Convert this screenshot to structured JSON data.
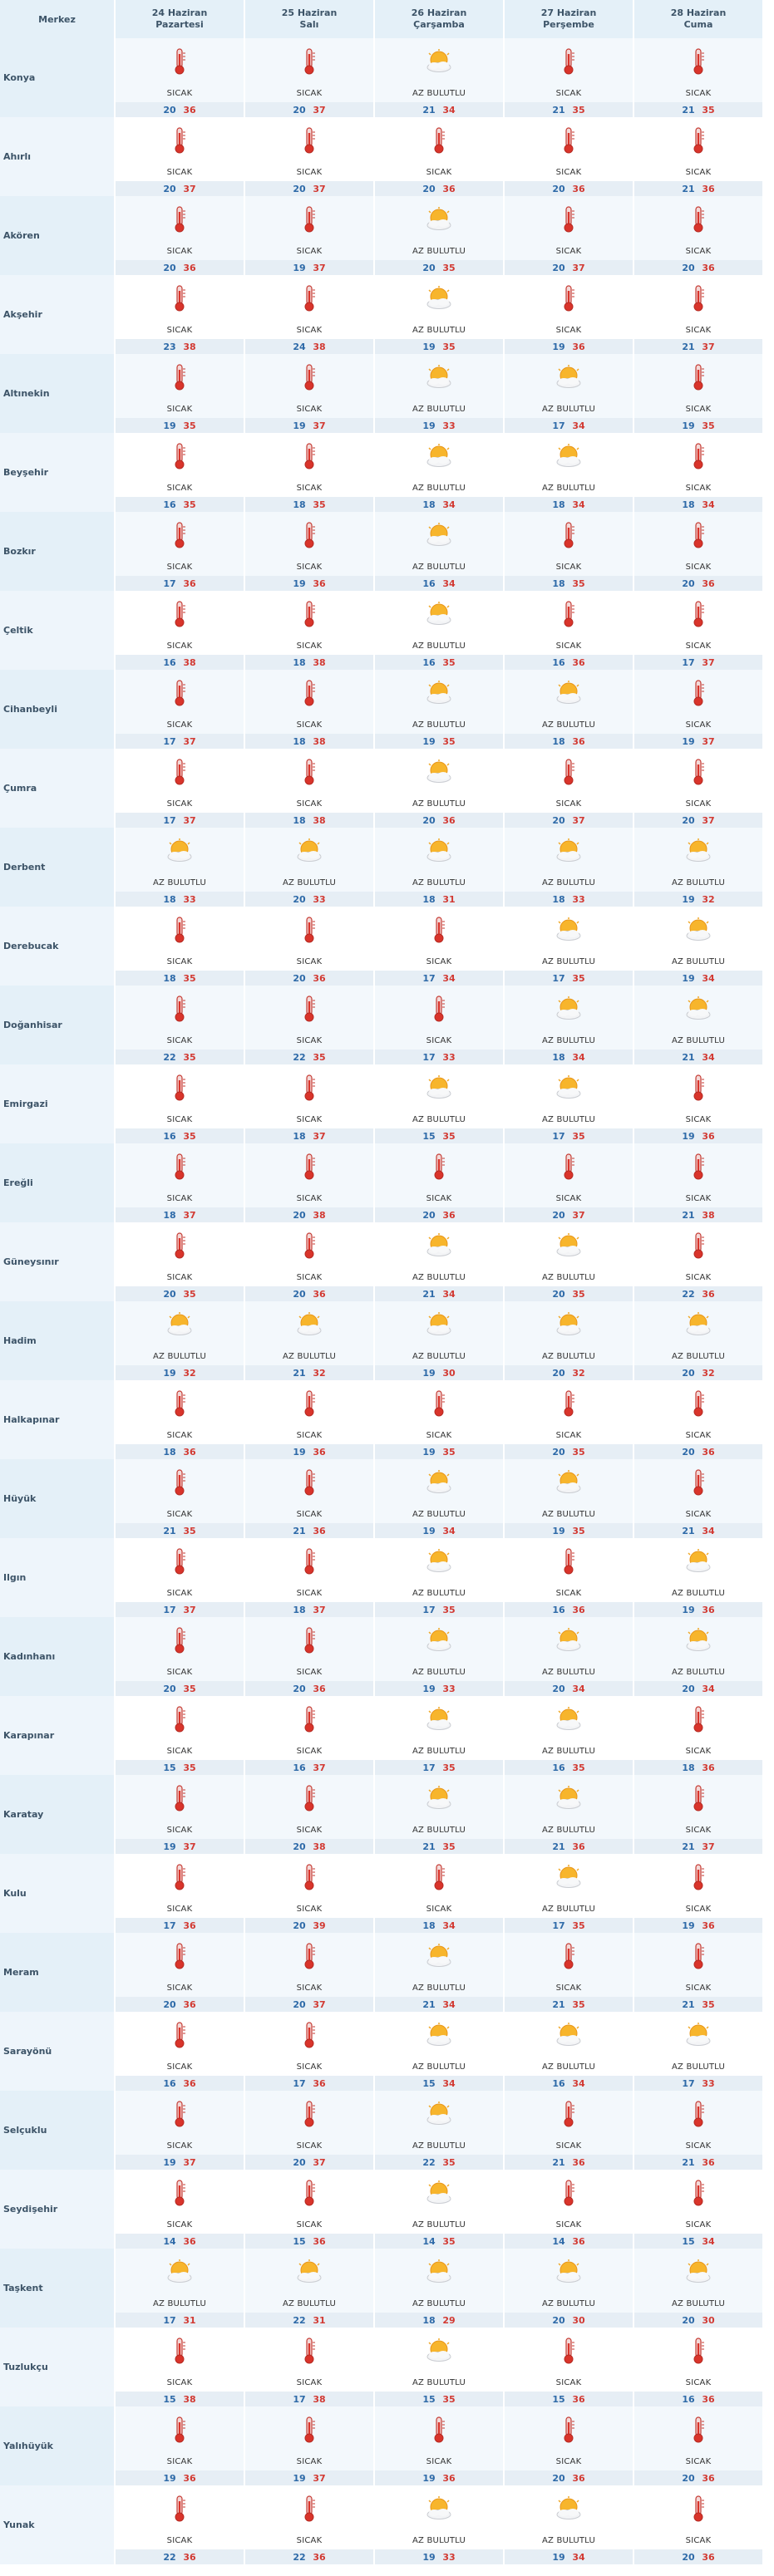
{
  "header": {
    "merkez_label": "Merkez",
    "days": [
      {
        "date": "24 Haziran",
        "weekday": "Pazartesi"
      },
      {
        "date": "25 Haziran",
        "weekday": "Salı"
      },
      {
        "date": "26 Haziran",
        "weekday": "Çarşamba"
      },
      {
        "date": "27 Haziran",
        "weekday": "Perşembe"
      },
      {
        "date": "28 Haziran",
        "weekday": "Cuma"
      }
    ]
  },
  "icons": {
    "SICAK": "thermometer-hot-icon",
    "AZ BULUTLU": "partly-cloudy-sun-icon"
  },
  "colors": {
    "min": "#2e6aa8",
    "max": "#d23a33",
    "header_bg": "#e4f0f8"
  },
  "rows": [
    {
      "city": "Konya",
      "days": [
        {
          "cond": "SICAK",
          "min": "20",
          "max": "36"
        },
        {
          "cond": "SICAK",
          "min": "20",
          "max": "37"
        },
        {
          "cond": "AZ BULUTLU",
          "min": "21",
          "max": "34"
        },
        {
          "cond": "SICAK",
          "min": "21",
          "max": "35"
        },
        {
          "cond": "SICAK",
          "min": "21",
          "max": "35"
        }
      ]
    },
    {
      "city": "Ahırlı",
      "days": [
        {
          "cond": "SICAK",
          "min": "20",
          "max": "37"
        },
        {
          "cond": "SICAK",
          "min": "20",
          "max": "37"
        },
        {
          "cond": "SICAK",
          "min": "20",
          "max": "36"
        },
        {
          "cond": "SICAK",
          "min": "20",
          "max": "36"
        },
        {
          "cond": "SICAK",
          "min": "21",
          "max": "36"
        }
      ]
    },
    {
      "city": "Akören",
      "days": [
        {
          "cond": "SICAK",
          "min": "20",
          "max": "36"
        },
        {
          "cond": "SICAK",
          "min": "19",
          "max": "37"
        },
        {
          "cond": "AZ BULUTLU",
          "min": "20",
          "max": "35"
        },
        {
          "cond": "SICAK",
          "min": "20",
          "max": "37"
        },
        {
          "cond": "SICAK",
          "min": "20",
          "max": "36"
        }
      ]
    },
    {
      "city": "Akşehir",
      "days": [
        {
          "cond": "SICAK",
          "min": "23",
          "max": "38"
        },
        {
          "cond": "SICAK",
          "min": "24",
          "max": "38"
        },
        {
          "cond": "AZ BULUTLU",
          "min": "19",
          "max": "35"
        },
        {
          "cond": "SICAK",
          "min": "19",
          "max": "36"
        },
        {
          "cond": "SICAK",
          "min": "21",
          "max": "37"
        }
      ]
    },
    {
      "city": "Altınekin",
      "days": [
        {
          "cond": "SICAK",
          "min": "19",
          "max": "35"
        },
        {
          "cond": "SICAK",
          "min": "19",
          "max": "37"
        },
        {
          "cond": "AZ BULUTLU",
          "min": "19",
          "max": "33"
        },
        {
          "cond": "AZ BULUTLU",
          "min": "17",
          "max": "34"
        },
        {
          "cond": "SICAK",
          "min": "19",
          "max": "35"
        }
      ]
    },
    {
      "city": "Beyşehir",
      "days": [
        {
          "cond": "SICAK",
          "min": "16",
          "max": "35"
        },
        {
          "cond": "SICAK",
          "min": "18",
          "max": "35"
        },
        {
          "cond": "AZ BULUTLU",
          "min": "18",
          "max": "34"
        },
        {
          "cond": "AZ BULUTLU",
          "min": "18",
          "max": "34"
        },
        {
          "cond": "SICAK",
          "min": "18",
          "max": "34"
        }
      ]
    },
    {
      "city": "Bozkır",
      "days": [
        {
          "cond": "SICAK",
          "min": "17",
          "max": "36"
        },
        {
          "cond": "SICAK",
          "min": "19",
          "max": "36"
        },
        {
          "cond": "AZ BULUTLU",
          "min": "16",
          "max": "34"
        },
        {
          "cond": "SICAK",
          "min": "18",
          "max": "35"
        },
        {
          "cond": "SICAK",
          "min": "20",
          "max": "36"
        }
      ]
    },
    {
      "city": "Çeltik",
      "days": [
        {
          "cond": "SICAK",
          "min": "16",
          "max": "38"
        },
        {
          "cond": "SICAK",
          "min": "18",
          "max": "38"
        },
        {
          "cond": "AZ BULUTLU",
          "min": "16",
          "max": "35"
        },
        {
          "cond": "SICAK",
          "min": "16",
          "max": "36"
        },
        {
          "cond": "SICAK",
          "min": "17",
          "max": "37"
        }
      ]
    },
    {
      "city": "Cihanbeyli",
      "days": [
        {
          "cond": "SICAK",
          "min": "17",
          "max": "37"
        },
        {
          "cond": "SICAK",
          "min": "18",
          "max": "38"
        },
        {
          "cond": "AZ BULUTLU",
          "min": "19",
          "max": "35"
        },
        {
          "cond": "AZ BULUTLU",
          "min": "18",
          "max": "36"
        },
        {
          "cond": "SICAK",
          "min": "19",
          "max": "37"
        }
      ]
    },
    {
      "city": "Çumra",
      "days": [
        {
          "cond": "SICAK",
          "min": "17",
          "max": "37"
        },
        {
          "cond": "SICAK",
          "min": "18",
          "max": "38"
        },
        {
          "cond": "AZ BULUTLU",
          "min": "20",
          "max": "36"
        },
        {
          "cond": "SICAK",
          "min": "20",
          "max": "37"
        },
        {
          "cond": "SICAK",
          "min": "20",
          "max": "37"
        }
      ]
    },
    {
      "city": "Derbent",
      "days": [
        {
          "cond": "AZ BULUTLU",
          "min": "18",
          "max": "33"
        },
        {
          "cond": "AZ BULUTLU",
          "min": "20",
          "max": "33"
        },
        {
          "cond": "AZ BULUTLU",
          "min": "18",
          "max": "31"
        },
        {
          "cond": "AZ BULUTLU",
          "min": "18",
          "max": "33"
        },
        {
          "cond": "AZ BULUTLU",
          "min": "19",
          "max": "32"
        }
      ]
    },
    {
      "city": "Derebucak",
      "days": [
        {
          "cond": "SICAK",
          "min": "18",
          "max": "35"
        },
        {
          "cond": "SICAK",
          "min": "20",
          "max": "36"
        },
        {
          "cond": "SICAK",
          "min": "17",
          "max": "34"
        },
        {
          "cond": "AZ BULUTLU",
          "min": "17",
          "max": "35"
        },
        {
          "cond": "AZ BULUTLU",
          "min": "19",
          "max": "34"
        }
      ]
    },
    {
      "city": "Doğanhisar",
      "days": [
        {
          "cond": "SICAK",
          "min": "22",
          "max": "35"
        },
        {
          "cond": "SICAK",
          "min": "22",
          "max": "35"
        },
        {
          "cond": "SICAK",
          "min": "17",
          "max": "33"
        },
        {
          "cond": "AZ BULUTLU",
          "min": "18",
          "max": "34"
        },
        {
          "cond": "AZ BULUTLU",
          "min": "21",
          "max": "34"
        }
      ]
    },
    {
      "city": "Emirgazi",
      "days": [
        {
          "cond": "SICAK",
          "min": "16",
          "max": "35"
        },
        {
          "cond": "SICAK",
          "min": "18",
          "max": "37"
        },
        {
          "cond": "AZ BULUTLU",
          "min": "15",
          "max": "35"
        },
        {
          "cond": "AZ BULUTLU",
          "min": "17",
          "max": "35"
        },
        {
          "cond": "SICAK",
          "min": "19",
          "max": "36"
        }
      ]
    },
    {
      "city": "Ereğli",
      "days": [
        {
          "cond": "SICAK",
          "min": "18",
          "max": "37"
        },
        {
          "cond": "SICAK",
          "min": "20",
          "max": "38"
        },
        {
          "cond": "SICAK",
          "min": "20",
          "max": "36"
        },
        {
          "cond": "SICAK",
          "min": "20",
          "max": "37"
        },
        {
          "cond": "SICAK",
          "min": "21",
          "max": "38"
        }
      ]
    },
    {
      "city": "Güneysınır",
      "days": [
        {
          "cond": "SICAK",
          "min": "20",
          "max": "35"
        },
        {
          "cond": "SICAK",
          "min": "20",
          "max": "36"
        },
        {
          "cond": "AZ BULUTLU",
          "min": "21",
          "max": "34"
        },
        {
          "cond": "AZ BULUTLU",
          "min": "20",
          "max": "35"
        },
        {
          "cond": "SICAK",
          "min": "22",
          "max": "36"
        }
      ]
    },
    {
      "city": "Hadim",
      "days": [
        {
          "cond": "AZ BULUTLU",
          "min": "19",
          "max": "32"
        },
        {
          "cond": "AZ BULUTLU",
          "min": "21",
          "max": "32"
        },
        {
          "cond": "AZ BULUTLU",
          "min": "19",
          "max": "30"
        },
        {
          "cond": "AZ BULUTLU",
          "min": "20",
          "max": "32"
        },
        {
          "cond": "AZ BULUTLU",
          "min": "20",
          "max": "32"
        }
      ]
    },
    {
      "city": "Halkapınar",
      "days": [
        {
          "cond": "SICAK",
          "min": "18",
          "max": "36"
        },
        {
          "cond": "SICAK",
          "min": "19",
          "max": "36"
        },
        {
          "cond": "SICAK",
          "min": "19",
          "max": "35"
        },
        {
          "cond": "SICAK",
          "min": "20",
          "max": "35"
        },
        {
          "cond": "SICAK",
          "min": "20",
          "max": "36"
        }
      ]
    },
    {
      "city": "Hüyük",
      "days": [
        {
          "cond": "SICAK",
          "min": "21",
          "max": "35"
        },
        {
          "cond": "SICAK",
          "min": "21",
          "max": "36"
        },
        {
          "cond": "AZ BULUTLU",
          "min": "19",
          "max": "34"
        },
        {
          "cond": "AZ BULUTLU",
          "min": "19",
          "max": "35"
        },
        {
          "cond": "SICAK",
          "min": "21",
          "max": "34"
        }
      ]
    },
    {
      "city": "Ilgın",
      "days": [
        {
          "cond": "SICAK",
          "min": "17",
          "max": "37"
        },
        {
          "cond": "SICAK",
          "min": "18",
          "max": "37"
        },
        {
          "cond": "AZ BULUTLU",
          "min": "17",
          "max": "35"
        },
        {
          "cond": "SICAK",
          "min": "16",
          "max": "36"
        },
        {
          "cond": "AZ BULUTLU",
          "min": "19",
          "max": "36"
        }
      ]
    },
    {
      "city": "Kadınhanı",
      "days": [
        {
          "cond": "SICAK",
          "min": "20",
          "max": "35"
        },
        {
          "cond": "SICAK",
          "min": "20",
          "max": "36"
        },
        {
          "cond": "AZ BULUTLU",
          "min": "19",
          "max": "33"
        },
        {
          "cond": "AZ BULUTLU",
          "min": "20",
          "max": "34"
        },
        {
          "cond": "AZ BULUTLU",
          "min": "20",
          "max": "34"
        }
      ]
    },
    {
      "city": "Karapınar",
      "days": [
        {
          "cond": "SICAK",
          "min": "15",
          "max": "35"
        },
        {
          "cond": "SICAK",
          "min": "16",
          "max": "37"
        },
        {
          "cond": "AZ BULUTLU",
          "min": "17",
          "max": "35"
        },
        {
          "cond": "AZ BULUTLU",
          "min": "16",
          "max": "35"
        },
        {
          "cond": "SICAK",
          "min": "18",
          "max": "36"
        }
      ]
    },
    {
      "city": "Karatay",
      "days": [
        {
          "cond": "SICAK",
          "min": "19",
          "max": "37"
        },
        {
          "cond": "SICAK",
          "min": "20",
          "max": "38"
        },
        {
          "cond": "AZ BULUTLU",
          "min": "21",
          "max": "35"
        },
        {
          "cond": "AZ BULUTLU",
          "min": "21",
          "max": "36"
        },
        {
          "cond": "SICAK",
          "min": "21",
          "max": "37"
        }
      ]
    },
    {
      "city": "Kulu",
      "days": [
        {
          "cond": "SICAK",
          "min": "17",
          "max": "36"
        },
        {
          "cond": "SICAK",
          "min": "20",
          "max": "39"
        },
        {
          "cond": "SICAK",
          "min": "18",
          "max": "34"
        },
        {
          "cond": "AZ BULUTLU",
          "min": "17",
          "max": "35"
        },
        {
          "cond": "SICAK",
          "min": "19",
          "max": "36"
        }
      ]
    },
    {
      "city": "Meram",
      "days": [
        {
          "cond": "SICAK",
          "min": "20",
          "max": "36"
        },
        {
          "cond": "SICAK",
          "min": "20",
          "max": "37"
        },
        {
          "cond": "AZ BULUTLU",
          "min": "21",
          "max": "34"
        },
        {
          "cond": "SICAK",
          "min": "21",
          "max": "35"
        },
        {
          "cond": "SICAK",
          "min": "21",
          "max": "35"
        }
      ]
    },
    {
      "city": "Sarayönü",
      "days": [
        {
          "cond": "SICAK",
          "min": "16",
          "max": "36"
        },
        {
          "cond": "SICAK",
          "min": "17",
          "max": "36"
        },
        {
          "cond": "AZ BULUTLU",
          "min": "15",
          "max": "34"
        },
        {
          "cond": "AZ BULUTLU",
          "min": "16",
          "max": "34"
        },
        {
          "cond": "AZ BULUTLU",
          "min": "17",
          "max": "33"
        }
      ]
    },
    {
      "city": "Selçuklu",
      "days": [
        {
          "cond": "SICAK",
          "min": "19",
          "max": "37"
        },
        {
          "cond": "SICAK",
          "min": "20",
          "max": "37"
        },
        {
          "cond": "AZ BULUTLU",
          "min": "22",
          "max": "35"
        },
        {
          "cond": "SICAK",
          "min": "21",
          "max": "36"
        },
        {
          "cond": "SICAK",
          "min": "21",
          "max": "36"
        }
      ]
    },
    {
      "city": "Seydişehir",
      "days": [
        {
          "cond": "SICAK",
          "min": "14",
          "max": "36"
        },
        {
          "cond": "SICAK",
          "min": "15",
          "max": "36"
        },
        {
          "cond": "AZ BULUTLU",
          "min": "14",
          "max": "35"
        },
        {
          "cond": "SICAK",
          "min": "14",
          "max": "36"
        },
        {
          "cond": "SICAK",
          "min": "15",
          "max": "34"
        }
      ]
    },
    {
      "city": "Taşkent",
      "days": [
        {
          "cond": "AZ BULUTLU",
          "min": "17",
          "max": "31"
        },
        {
          "cond": "AZ BULUTLU",
          "min": "22",
          "max": "31"
        },
        {
          "cond": "AZ BULUTLU",
          "min": "18",
          "max": "29"
        },
        {
          "cond": "AZ BULUTLU",
          "min": "20",
          "max": "30"
        },
        {
          "cond": "AZ BULUTLU",
          "min": "20",
          "max": "30"
        }
      ]
    },
    {
      "city": "Tuzlukçu",
      "days": [
        {
          "cond": "SICAK",
          "min": "15",
          "max": "38"
        },
        {
          "cond": "SICAK",
          "min": "17",
          "max": "38"
        },
        {
          "cond": "AZ BULUTLU",
          "min": "15",
          "max": "35"
        },
        {
          "cond": "SICAK",
          "min": "15",
          "max": "36"
        },
        {
          "cond": "SICAK",
          "min": "16",
          "max": "36"
        }
      ]
    },
    {
      "city": "Yalıhüyük",
      "days": [
        {
          "cond": "SICAK",
          "min": "19",
          "max": "36"
        },
        {
          "cond": "SICAK",
          "min": "19",
          "max": "37"
        },
        {
          "cond": "SICAK",
          "min": "19",
          "max": "36"
        },
        {
          "cond": "SICAK",
          "min": "20",
          "max": "36"
        },
        {
          "cond": "SICAK",
          "min": "20",
          "max": "36"
        }
      ]
    },
    {
      "city": "Yunak",
      "days": [
        {
          "cond": "SICAK",
          "min": "22",
          "max": "36"
        },
        {
          "cond": "SICAK",
          "min": "22",
          "max": "36"
        },
        {
          "cond": "AZ BULUTLU",
          "min": "19",
          "max": "33"
        },
        {
          "cond": "AZ BULUTLU",
          "min": "19",
          "max": "34"
        },
        {
          "cond": "SICAK",
          "min": "20",
          "max": "36"
        }
      ]
    }
  ]
}
